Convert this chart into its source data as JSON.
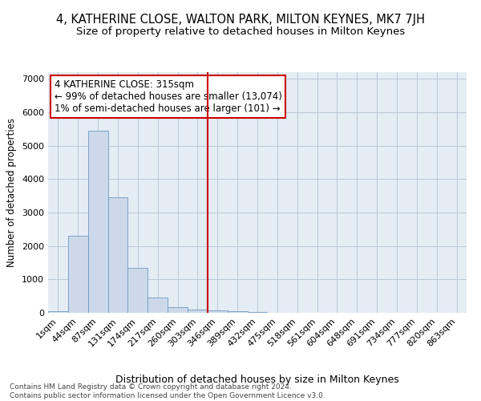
{
  "title1": "4, KATHERINE CLOSE, WALTON PARK, MILTON KEYNES, MK7 7JH",
  "title2": "Size of property relative to detached houses in Milton Keynes",
  "xlabel": "Distribution of detached houses by size in Milton Keynes",
  "ylabel": "Number of detached properties",
  "footer1": "Contains HM Land Registry data © Crown copyright and database right 2024.",
  "footer2": "Contains public sector information licensed under the Open Government Licence v3.0.",
  "bar_color": "#cdd9ea",
  "bar_edge_color": "#7099c0",
  "grid_color": "#b8c8d8",
  "background_color": "#e4ecf4",
  "annotation_text": "4 KATHERINE CLOSE: 315sqm\n← 99% of detached houses are smaller (13,074)\n1% of semi-detached houses are larger (101) →",
  "annotation_box_color": "white",
  "annotation_edge_color": "#cc0000",
  "vline_color": "#cc0000",
  "vline_x": 7.5,
  "categories": [
    "1sqm",
    "44sqm",
    "87sqm",
    "131sqm",
    "174sqm",
    "217sqm",
    "260sqm",
    "303sqm",
    "346sqm",
    "389sqm",
    "432sqm",
    "475sqm",
    "518sqm",
    "561sqm",
    "604sqm",
    "648sqm",
    "691sqm",
    "734sqm",
    "777sqm",
    "820sqm",
    "863sqm"
  ],
  "values": [
    50,
    2300,
    5450,
    3450,
    1350,
    450,
    175,
    100,
    75,
    50,
    15,
    5,
    2,
    0,
    0,
    0,
    0,
    0,
    0,
    0,
    0
  ],
  "ylim": [
    0,
    7200
  ],
  "yticks": [
    0,
    1000,
    2000,
    3000,
    4000,
    5000,
    6000,
    7000
  ],
  "title1_fontsize": 10.5,
  "title2_fontsize": 9.5,
  "tick_fontsize": 8,
  "ylabel_fontsize": 8.5,
  "xlabel_fontsize": 9,
  "footer_fontsize": 6.5,
  "annotation_fontsize": 8.5
}
